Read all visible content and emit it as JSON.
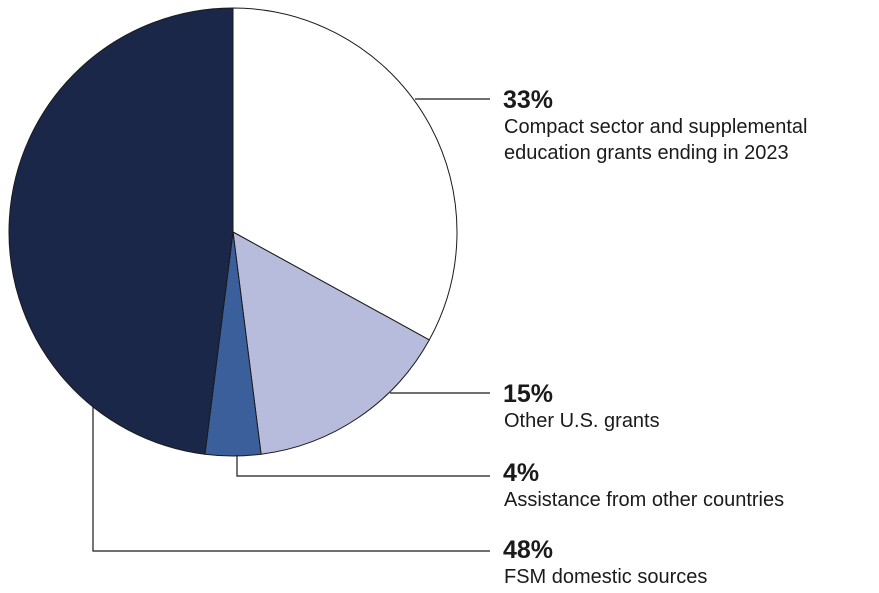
{
  "chart_data": {
    "type": "pie",
    "categories": [
      "Compact sector and supplemental education grants ending in 2023",
      "Other U.S. grants",
      "Assistance from other countries",
      "FSM domestic sources"
    ],
    "values": [
      33,
      15,
      4,
      48
    ],
    "value_labels": [
      "33%",
      "15%",
      "4%",
      "48%"
    ],
    "colors": [
      "#ffffff",
      "#b8bcdc",
      "#3a5f9a",
      "#1a2748"
    ]
  }
}
